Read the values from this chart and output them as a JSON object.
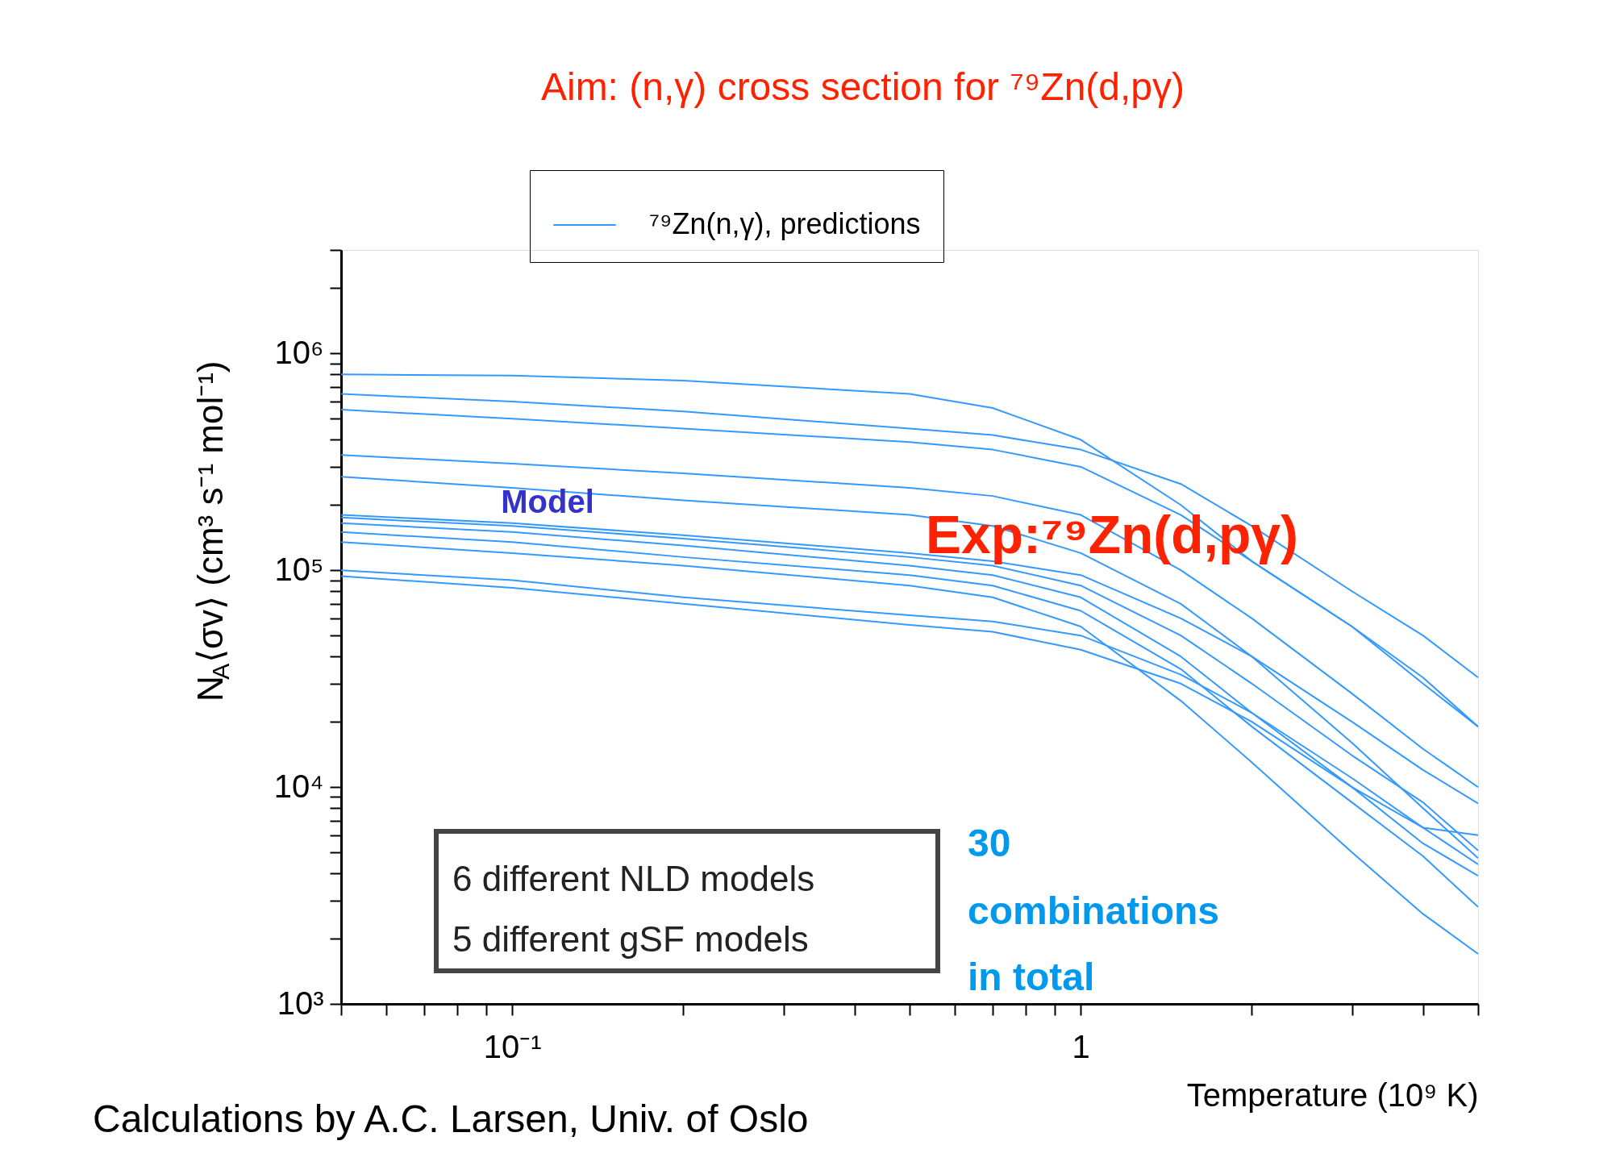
{
  "chart_data": {
    "type": "line",
    "title": "Aim: (n,γ) cross section for ⁷⁹Zn(d,pγ)",
    "xlabel": "Temperature (10⁹ K)",
    "ylabel": "N$_{A}$⟨σv⟩ (cm³ s⁻¹ mol⁻¹)",
    "log": "xy",
    "grid": false,
    "legend": "top",
    "marker": "none",
    "line_style": "solid",
    "xlim": [
      0.05,
      5
    ],
    "ylim": [
      1000,
      3000000
    ],
    "xticks": [
      {
        "value": 0.05,
        "label": null
      },
      {
        "value": 0.06,
        "label": null
      },
      {
        "value": 0.07,
        "label": null
      },
      {
        "value": 0.08,
        "label": null
      },
      {
        "value": 0.09,
        "label": null
      },
      {
        "value": 0.1,
        "label": "10⁻¹"
      },
      {
        "value": 0.2,
        "label": null
      },
      {
        "value": 0.3,
        "label": null
      },
      {
        "value": 0.4,
        "label": null
      },
      {
        "value": 0.5,
        "label": null
      },
      {
        "value": 0.6,
        "label": null
      },
      {
        "value": 0.7,
        "label": null
      },
      {
        "value": 0.8,
        "label": null
      },
      {
        "value": 0.9,
        "label": null
      },
      1,
      {
        "value": 2,
        "label": null
      },
      {
        "value": 3,
        "label": null
      },
      {
        "value": 4,
        "label": null
      },
      {
        "value": 5,
        "label": null
      }
    ],
    "yticks": [
      {
        "value": 1000,
        "label": "10³"
      },
      {
        "value": 2000,
        "label": null
      },
      {
        "value": 3000,
        "label": null
      },
      {
        "value": 4000,
        "label": null
      },
      {
        "value": 5000,
        "label": null
      },
      {
        "value": 6000,
        "label": null
      },
      {
        "value": 7000,
        "label": null
      },
      {
        "value": 8000,
        "label": null
      },
      {
        "value": 9000,
        "label": null
      },
      {
        "value": 10000,
        "label": "10⁴"
      },
      {
        "value": 20000,
        "label": null
      },
      {
        "value": 30000,
        "label": null
      },
      {
        "value": 40000,
        "label": null
      },
      {
        "value": 50000,
        "label": null
      },
      {
        "value": 60000,
        "label": null
      },
      {
        "value": 70000,
        "label": null
      },
      {
        "value": 80000,
        "label": null
      },
      {
        "value": 90000,
        "label": null
      },
      {
        "value": 100000,
        "label": "10⁵"
      },
      {
        "value": 200000,
        "label": null
      },
      {
        "value": 300000,
        "label": null
      },
      {
        "value": 400000,
        "label": null
      },
      {
        "value": 500000,
        "label": null
      },
      {
        "value": 600000,
        "label": null
      },
      {
        "value": 700000,
        "label": null
      },
      {
        "value": 800000,
        "label": null
      },
      {
        "value": 900000,
        "label": null
      },
      {
        "value": 1000000,
        "label": "10⁶"
      },
      {
        "value": 2000000,
        "label": null
      },
      {
        "value": 3000000,
        "label": null
      }
    ],
    "x": [
      0.05,
      0.1,
      0.2,
      0.5,
      0.7,
      1,
      1.5,
      2,
      3,
      4,
      5
    ],
    "series": [
      {
        "name": "⁷⁹Zn(n,γ), predictions",
        "color": "#3399ff",
        "values": [
          800000,
          790000,
          750000,
          650000,
          560000,
          400000,
          200000,
          110000,
          55000,
          30000,
          19000
        ]
      },
      {
        "color": "#3399ff",
        "values": [
          650000,
          600000,
          540000,
          450000,
          420000,
          360000,
          250000,
          160000,
          80000,
          50000,
          32000
        ]
      },
      {
        "color": "#3399ff",
        "values": [
          550000,
          500000,
          450000,
          390000,
          360000,
          300000,
          180000,
          110000,
          55000,
          32000,
          19000
        ]
      },
      {
        "color": "#3399ff",
        "values": [
          340000,
          310000,
          280000,
          240000,
          220000,
          180000,
          100000,
          60000,
          27000,
          15000,
          10000
        ]
      },
      {
        "color": "#3399ff",
        "values": [
          270000,
          240000,
          210000,
          180000,
          160000,
          120000,
          70000,
          40000,
          16000,
          8000,
          4700
        ]
      },
      {
        "color": "#3399ff",
        "values": [
          180000,
          165000,
          145000,
          120000,
          110000,
          95000,
          60000,
          40000,
          20000,
          12000,
          8400
        ]
      },
      {
        "color": "#3399ff",
        "values": [
          175000,
          160000,
          140000,
          115000,
          105000,
          85000,
          50000,
          30000,
          14000,
          8500,
          5100
        ]
      },
      {
        "color": "#3399ff",
        "values": [
          165000,
          150000,
          130000,
          105000,
          95000,
          75000,
          40000,
          22000,
          10000,
          5500,
          3900
        ]
      },
      {
        "color": "#3399ff",
        "values": [
          150000,
          135000,
          115000,
          95000,
          85000,
          65000,
          35000,
          19000,
          8500,
          4800,
          2800
        ]
      },
      {
        "color": "#3399ff",
        "values": [
          135000,
          120000,
          105000,
          85000,
          75000,
          55000,
          25000,
          13000,
          5000,
          2600,
          1700
        ]
      },
      {
        "color": "#3399ff",
        "values": [
          100000,
          90000,
          75000,
          62000,
          58000,
          50000,
          33000,
          22000,
          11000,
          6500,
          4400
        ]
      },
      {
        "color": "#3399ff",
        "values": [
          94000,
          83000,
          70000,
          56000,
          52000,
          43000,
          30000,
          20000,
          10000,
          6500,
          6000
        ]
      }
    ],
    "annotations": [
      "Model",
      "Exp:⁷⁹Zn(d,pγ)",
      "6 different NLD models",
      "5 different gSF models",
      "30",
      "combinations",
      "in total",
      "Calculations by A.C. Larsen, Univ. of Oslo"
    ]
  }
}
